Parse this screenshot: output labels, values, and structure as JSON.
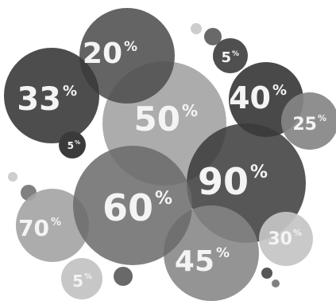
{
  "palette": {
    "background": "#ffffff",
    "text": "#f4f4f4",
    "tones": [
      "#3a3a3a",
      "#4f4f4f",
      "#6a6a6a",
      "#858585",
      "#a3a3a3",
      "#c4c4c4"
    ]
  },
  "bubbles": [
    {
      "id": "20",
      "number": "20",
      "percent": "%"
    },
    {
      "id": "33",
      "number": "33",
      "percent": "%"
    },
    {
      "id": "50",
      "number": "50",
      "percent": "%"
    },
    {
      "id": "40",
      "number": "40",
      "percent": "%"
    },
    {
      "id": "25",
      "number": "25",
      "percent": "%"
    },
    {
      "id": "5-top",
      "number": "5",
      "percent": "%"
    },
    {
      "id": "5-left",
      "number": "5",
      "percent": "%"
    },
    {
      "id": "90",
      "number": "90",
      "percent": "%"
    },
    {
      "id": "70",
      "number": "70",
      "percent": "%"
    },
    {
      "id": "45",
      "number": "45",
      "percent": "%"
    },
    {
      "id": "60",
      "number": "60",
      "percent": "%"
    },
    {
      "id": "30",
      "number": "30",
      "percent": "%"
    },
    {
      "id": "5-bottom",
      "number": "5",
      "percent": "%"
    }
  ]
}
